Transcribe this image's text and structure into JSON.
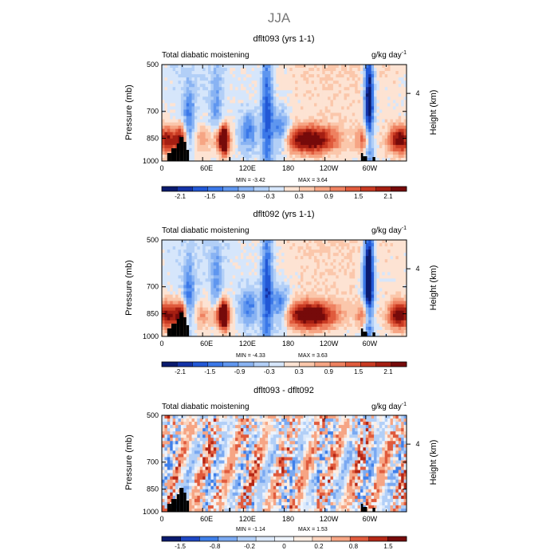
{
  "page_title": "JJA",
  "chart_data": [
    {
      "type": "heatmap",
      "title": "dflt093 (yrs 1-1)",
      "subtitle_left": "Total diabatic moistening",
      "units": "g/kg day",
      "units_exp": "-1",
      "xlabel": "",
      "ylabel": "Pressure (mb)",
      "ylabel_right": "Height (km)",
      "x_ticks": [
        "0",
        "60E",
        "120E",
        "180",
        "120W",
        "60W"
      ],
      "y_ticks": [
        "500",
        "700",
        "850",
        "1000"
      ],
      "y_ticks_right": [
        "4"
      ],
      "min_text": "MIN =   -3.42",
      "max_text": "MAX =    3.64",
      "colorbar_labels": [
        "-2.1",
        "-1.5",
        "-0.9",
        "-0.3",
        "0.3",
        "0.9",
        "1.5",
        "2.1"
      ],
      "colorbar_levels": [
        -2.4,
        -2.1,
        -1.8,
        -1.5,
        -1.2,
        -0.9,
        -0.6,
        -0.3,
        0,
        0.3,
        0.6,
        0.9,
        1.2,
        1.5,
        1.8,
        2.1,
        2.4
      ],
      "xlim": [
        0,
        360
      ],
      "ylim": [
        1000,
        500
      ]
    },
    {
      "type": "heatmap",
      "title": "dflt092 (yrs 1-1)",
      "subtitle_left": "Total diabatic moistening",
      "units": "g/kg day",
      "units_exp": "-1",
      "xlabel": "",
      "ylabel": "Pressure (mb)",
      "ylabel_right": "Height (km)",
      "x_ticks": [
        "0",
        "60E",
        "120E",
        "180",
        "120W",
        "60W"
      ],
      "y_ticks": [
        "500",
        "700",
        "850",
        "1000"
      ],
      "y_ticks_right": [
        "4"
      ],
      "min_text": "MIN =   -4.33",
      "max_text": "MAX =    3.63",
      "colorbar_labels": [
        "-2.1",
        "-1.5",
        "-0.9",
        "-0.3",
        "0.3",
        "0.9",
        "1.5",
        "2.1"
      ],
      "colorbar_levels": [
        -2.4,
        -2.1,
        -1.8,
        -1.5,
        -1.2,
        -0.9,
        -0.6,
        -0.3,
        0,
        0.3,
        0.6,
        0.9,
        1.2,
        1.5,
        1.8,
        2.1,
        2.4
      ],
      "xlim": [
        0,
        360
      ],
      "ylim": [
        1000,
        500
      ]
    },
    {
      "type": "heatmap",
      "title": "dflt093 - dflt092",
      "subtitle_left": "Total diabatic moistening",
      "units": "g/kg day",
      "units_exp": "-1",
      "xlabel": "",
      "ylabel": "Pressure (mb)",
      "ylabel_right": "Height (km)",
      "x_ticks": [
        "0",
        "60E",
        "120E",
        "180",
        "120W",
        "60W"
      ],
      "y_ticks": [
        "500",
        "700",
        "850",
        "1000"
      ],
      "y_ticks_right": [
        "4"
      ],
      "min_text": "MIN =   -1.14",
      "max_text": "MAX =    1.53",
      "colorbar_labels": [
        "-1.5",
        "-0.8",
        "-0.2",
        "0",
        "0.2",
        "0.8",
        "1.5"
      ],
      "colorbar_levels": [
        -1.8,
        -1.5,
        -1.2,
        -0.8,
        -0.5,
        -0.2,
        -0.1,
        0,
        0.1,
        0.2,
        0.5,
        0.8,
        1.2,
        1.5,
        1.8
      ],
      "xlim": [
        0,
        360
      ],
      "ylim": [
        1000,
        500
      ]
    }
  ],
  "colors": {
    "scale": [
      "#0a1a6e",
      "#1433a8",
      "#2258d6",
      "#3b78e8",
      "#5f96ef",
      "#89b3f3",
      "#b2cff7",
      "#d6e6fb",
      "#fde3d3",
      "#fbc7ab",
      "#f6a584",
      "#ee8160",
      "#e05b3d",
      "#c93a22",
      "#a51e12",
      "#760a0a"
    ],
    "diff_scale": [
      "#0a1a6e",
      "#1e47c4",
      "#3f7fe9",
      "#7aa9f1",
      "#b2cff7",
      "#dce9fb",
      "#eef4fd",
      "#fdeee4",
      "#fbd3bd",
      "#f6a584",
      "#e05b3d",
      "#b52716",
      "#760a0a"
    ],
    "topography": "#000000"
  }
}
